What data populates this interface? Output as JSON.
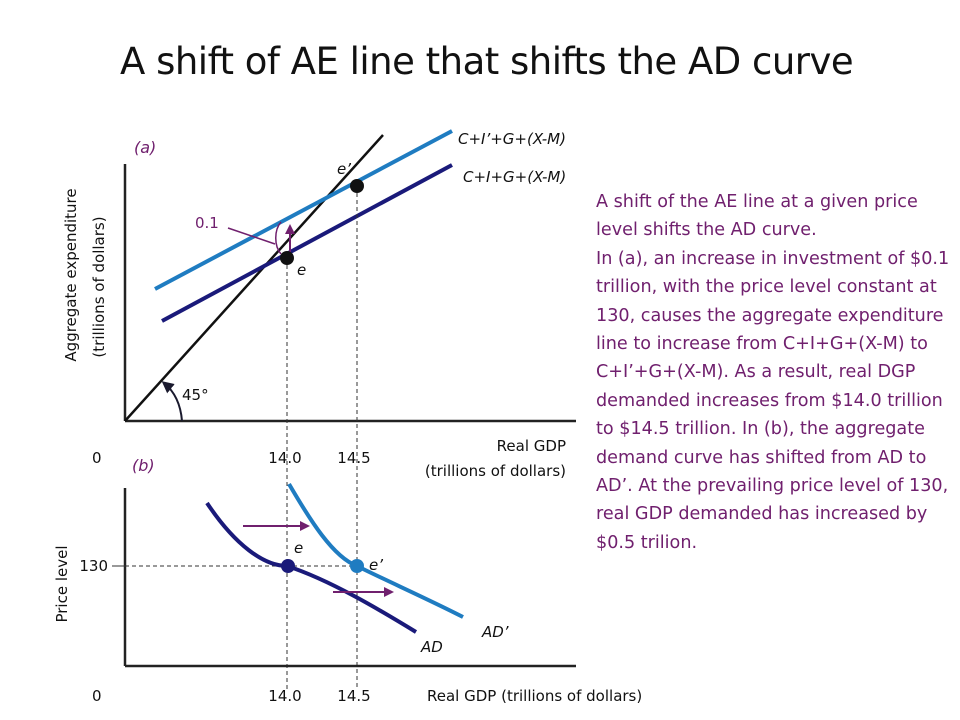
{
  "title": "A shift of AE line that shifts the AD curve",
  "panel_a": {
    "label": "(a)",
    "y_axis_label_line1": "Aggregate expenditure",
    "y_axis_label_line2": "(trillions of dollars)",
    "x_axis_label_line1": "Real GDP",
    "x_axis_label_line2": "(trillions of dollars)",
    "origin": "0",
    "x_ticks": [
      "14.0",
      "14.5"
    ],
    "line_new_label": "C+I’+G+(X-M)",
    "line_old_label": "C+I+G+(X-M)",
    "angle_label": "45°",
    "shift_label": "0.1",
    "point_e_label": "e",
    "point_e_prime_label": "e’"
  },
  "panel_b": {
    "label": "(b)",
    "y_axis_label": "Price level",
    "y_tick": "130",
    "origin": "0",
    "x_ticks": [
      "14.0",
      "14.5"
    ],
    "x_axis_label": "Real GDP (trillions of dollars)",
    "curve_ad_label": "AD",
    "curve_ad_prime_label": "AD’",
    "point_e_label": "e",
    "point_e_prime_label": "e’"
  },
  "explanation": [
    "A shift of the AE line at a given price level shifts the AD curve.",
    "In (a), an increase in investment of $0.1 trillion, with the price level constant at 130, causes the aggregate expenditure line to increase from C+I+G+(X-M) to C+I’+G+(X-M). As a result, real DGP demanded increases from $14.0 trillion to $14.5 trillion. In (b), the aggregate demand curve has shifted from AD to AD’. At the prevailing price level of 130, real GDP demanded has increased by $0.5 trilion."
  ],
  "colors": {
    "ae_new_line": "#1f7cc1",
    "ae_old_line": "#1a1a7a",
    "ad_curve": "#1a1a7a",
    "ad_prime_curve": "#1f7cc1",
    "annotation": "#70206e",
    "point_e": "#1a1a7a",
    "point_e_prime_b": "#1f7cc1"
  }
}
